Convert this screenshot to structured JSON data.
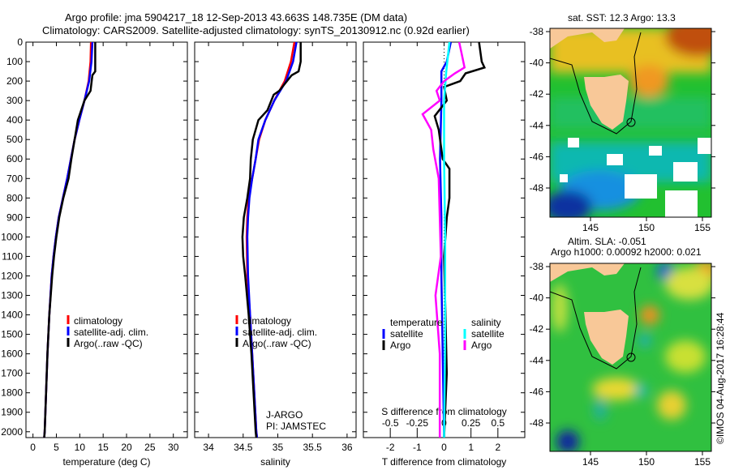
{
  "title_line1": "Argo profile: jma 5904217_18 12-Sep-2013 43.663S 148.735E (DM data)",
  "title_line2": "Climatology: CARS2009. Satellite-adjusted climatology: synTS_20130912.nc (0.92d earlier)",
  "colors": {
    "climatology": "#ff0000",
    "satellite": "#0000ff",
    "argo": "#000000",
    "sal_satellite": "#00ffff",
    "sal_argo": "#ff00ff"
  },
  "chart_data": [
    {
      "type": "line",
      "name": "temperature",
      "xlabel": "temperature (deg C)",
      "ylabel": "",
      "xlim": [
        -1.5,
        33
      ],
      "ylim": [
        2030,
        0
      ],
      "xticks": [
        0,
        5,
        10,
        15,
        20,
        25,
        30
      ],
      "yticks": [
        0,
        100,
        200,
        300,
        400,
        500,
        600,
        700,
        800,
        900,
        1000,
        1100,
        1200,
        1300,
        1400,
        1500,
        1600,
        1700,
        1800,
        1900,
        2000
      ],
      "legend": [
        "climatology",
        "satellite-adj. clim.",
        "Argo(..raw -QC)"
      ],
      "series": [
        {
          "name": "climatology",
          "color": "#ff0000",
          "depth": [
            0,
            100,
            200,
            300,
            400,
            500,
            600,
            700,
            800,
            900,
            1000,
            1100,
            1200,
            1400,
            1600,
            1800,
            2000,
            2030
          ],
          "values": [
            12.4,
            12.3,
            11.9,
            11.0,
            9.9,
            8.9,
            8.1,
            7.3,
            6.4,
            5.5,
            4.9,
            4.4,
            4.0,
            3.5,
            3.1,
            2.8,
            2.5,
            2.4
          ]
        },
        {
          "name": "satellite-adj. clim.",
          "color": "#0000ff",
          "depth": [
            0,
            100,
            200,
            300,
            400,
            500,
            600,
            700,
            800,
            900,
            1000,
            1100,
            1200,
            1400,
            1600,
            1800,
            2000,
            2030
          ],
          "values": [
            12.7,
            12.5,
            12.0,
            11.0,
            9.9,
            8.9,
            8.1,
            7.3,
            6.4,
            5.5,
            4.9,
            4.4,
            4.0,
            3.5,
            3.1,
            2.8,
            2.5,
            2.4
          ]
        },
        {
          "name": "Argo(..raw -QC)",
          "color": "#000000",
          "depth": [
            0,
            150,
            170,
            250,
            300,
            400,
            500,
            600,
            700,
            800,
            900,
            1000,
            1100,
            1200,
            1400,
            1600,
            1800,
            2000,
            2030
          ],
          "values": [
            13.3,
            13.3,
            12.7,
            12.3,
            11.0,
            9.6,
            8.9,
            8.2,
            7.6,
            6.5,
            5.6,
            5.0,
            4.5,
            4.1,
            3.5,
            3.1,
            2.8,
            2.5,
            2.4
          ]
        }
      ]
    },
    {
      "type": "line",
      "name": "salinity",
      "xlabel": "salinity",
      "xlim": [
        33.8,
        36.13
      ],
      "ylim": [
        2030,
        0
      ],
      "xticks": [
        34,
        34.5,
        35,
        35.5,
        36
      ],
      "legend": [
        "climatology",
        "satellite-adj. clim.",
        "Argo(..raw -QC)"
      ],
      "annotation": [
        "J-ARGO",
        "PI: JAMSTEC"
      ],
      "series": [
        {
          "name": "climatology",
          "color": "#ff0000",
          "depth": [
            0,
            100,
            200,
            300,
            400,
            500,
            600,
            700,
            800,
            900,
            1000,
            1200,
            1400,
            1600,
            1800,
            2000,
            2030
          ],
          "values": [
            35.24,
            35.19,
            35.1,
            34.95,
            34.82,
            34.73,
            34.68,
            34.63,
            34.58,
            34.56,
            34.55,
            34.56,
            34.6,
            34.63,
            34.66,
            34.69,
            34.7
          ]
        },
        {
          "name": "satellite-adj. clim.",
          "color": "#0000ff",
          "depth": [
            0,
            100,
            200,
            300,
            400,
            500,
            600,
            700,
            800,
            900,
            1000,
            1200,
            1400,
            1600,
            1800,
            2000,
            2030
          ],
          "values": [
            35.27,
            35.22,
            35.12,
            34.95,
            34.82,
            34.72,
            34.68,
            34.63,
            34.59,
            34.57,
            34.56,
            34.57,
            34.6,
            34.63,
            34.66,
            34.69,
            34.7
          ]
        },
        {
          "name": "Argo(..raw -QC)",
          "color": "#000000",
          "depth": [
            0,
            100,
            150,
            170,
            250,
            270,
            350,
            400,
            500,
            600,
            700,
            800,
            900,
            1000,
            1100,
            1200,
            1400,
            1600,
            1800,
            2000,
            2030
          ],
          "values": [
            35.33,
            35.33,
            35.3,
            35.2,
            35.02,
            34.94,
            34.85,
            34.72,
            34.64,
            34.61,
            34.6,
            34.56,
            34.51,
            34.49,
            34.5,
            34.53,
            34.58,
            34.62,
            34.65,
            34.68,
            34.69
          ]
        }
      ]
    },
    {
      "type": "line",
      "name": "difference",
      "xlabel": "T difference from climatology",
      "x2label": "S difference from climatology",
      "xlim": [
        -3,
        3
      ],
      "x2lim": [
        -0.75,
        0.75
      ],
      "ylim": [
        2030,
        0
      ],
      "xticks": [
        -2,
        -1,
        0,
        1,
        2
      ],
      "x2ticks": [
        -0.5,
        -0.25,
        0,
        0.25,
        0.5
      ],
      "x2ticklabels": [
        "-0.5",
        "-0.25",
        "0",
        "0.25",
        "0.5"
      ],
      "legend_titles": [
        "temperature",
        "salinity"
      ],
      "legend": [
        "satellite",
        "Argo",
        "satellite",
        "Argo"
      ],
      "series": [
        {
          "name": "T satellite",
          "axis": "T",
          "color": "#0000ff",
          "depth": [
            0,
            100,
            150,
            300,
            600,
            900,
            1200,
            1600,
            2030
          ],
          "values": [
            0.25,
            0.1,
            -0.1,
            -0.1,
            -0.15,
            -0.1,
            -0.1,
            -0.05,
            0
          ]
        },
        {
          "name": "T Argo",
          "axis": "T",
          "color": "#000000",
          "depth": [
            0,
            100,
            130,
            160,
            200,
            230,
            300,
            380,
            450,
            600,
            650,
            800,
            900,
            1100,
            1400,
            1700,
            2030
          ],
          "values": [
            1.3,
            1.4,
            1.5,
            0.8,
            0.6,
            0.0,
            0.1,
            -0.35,
            -0.2,
            -0.05,
            0.2,
            0.2,
            0.1,
            0.0,
            0.05,
            0.1,
            0.0
          ]
        },
        {
          "name": "S satellite",
          "axis": "S",
          "color": "#00ffff",
          "depth": [
            0,
            150,
            300,
            600,
            1000,
            1500,
            2030
          ],
          "values": [
            0.05,
            0.02,
            0.0,
            0.0,
            0.01,
            0.01,
            0.0
          ]
        },
        {
          "name": "S Argo",
          "axis": "S",
          "color": "#ff00ff",
          "depth": [
            0,
            50,
            130,
            160,
            200,
            250,
            300,
            370,
            450,
            550,
            700,
            900,
            1100,
            1300,
            1600,
            2030
          ],
          "values": [
            0.14,
            0.16,
            0.19,
            0.1,
            0.0,
            -0.07,
            -0.04,
            -0.2,
            -0.12,
            -0.1,
            -0.05,
            -0.04,
            -0.03,
            -0.08,
            -0.04,
            -0.04
          ]
        }
      ]
    }
  ],
  "map_sst": {
    "title": "sat. SST: 12.3 Argo: 13.3",
    "lat_ticks": [
      "-38",
      "-40",
      "-42",
      "-44",
      "-46",
      "-48"
    ],
    "lon_ticks": [
      "145",
      "150",
      "155"
    ]
  },
  "map_sla": {
    "title1": "Altim. SLA: -0.051",
    "title2": "Argo h1000: 0.00092 h2000: 0.021",
    "lat_ticks": [
      "-38",
      "-40",
      "-42",
      "-44",
      "-46",
      "-48"
    ],
    "lon_ticks": [
      "145",
      "150",
      "155"
    ]
  },
  "credit": "©IMOS 04-Aug-2017 16:28:44"
}
